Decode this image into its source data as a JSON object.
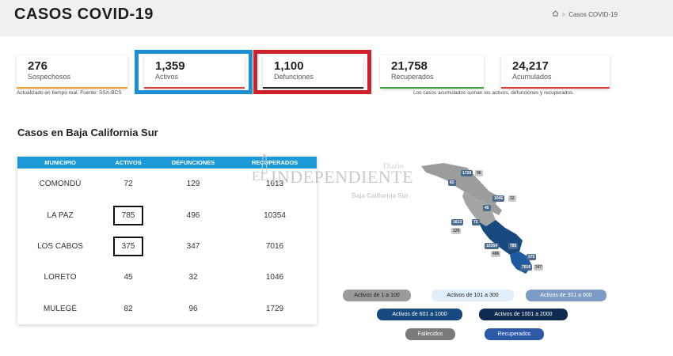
{
  "header": {
    "title": "CASOS COVID-19",
    "breadcrumb": {
      "home_icon": "home-icon",
      "separator": ">",
      "current": "Casos COVID-19"
    }
  },
  "cards": [
    {
      "value": "276",
      "label": "Sospechosos",
      "color": "#f0a030"
    },
    {
      "value": "1,359",
      "label": "Activos",
      "color": "#e03a3a"
    },
    {
      "value": "1,100",
      "label": "Defunciones",
      "color": "#222222"
    },
    {
      "value": "21,758",
      "label": "Recuperados",
      "color": "#3aa63a"
    },
    {
      "value": "24,217",
      "label": "Acumulados",
      "color": "#e03a3a"
    }
  ],
  "highlight_colors": {
    "activos": "#1b8fd6",
    "defunciones": "#d0202a"
  },
  "notes": {
    "left": "Actualizado en tiempo real. Fuente: SSA-BCS",
    "right": "Los casos acumulados suman los activos, defunciones y recuperados."
  },
  "section_title": "Casos en Baja California Sur",
  "table": {
    "headers": [
      "MUNICIPIO",
      "ACTIVOS",
      "DEFUNCIONES",
      "RECUPERADOS"
    ],
    "rows": [
      {
        "municipio": "COMONDÚ",
        "activos": "72",
        "defunciones": "129",
        "recuperados": "1613"
      },
      {
        "municipio": "LA PAZ",
        "activos": "785",
        "defunciones": "496",
        "recuperados": "10354"
      },
      {
        "municipio": "LOS CABOS",
        "activos": "375",
        "defunciones": "347",
        "recuperados": "7016"
      },
      {
        "municipio": "LORETO",
        "activos": "45",
        "defunciones": "32",
        "recuperados": "1046"
      },
      {
        "municipio": "MULEGÉ",
        "activos": "82",
        "defunciones": "96",
        "recuperados": "1729"
      }
    ],
    "header_color": "#1b9ad7"
  },
  "watermark": {
    "el": "EL",
    "name": "INDEPENDIENTE",
    "diario": "Diario",
    "region": "Baja California Sur"
  },
  "map_labels": [
    "1729",
    "96",
    "82",
    "1046",
    "32",
    "45",
    "1613",
    "72",
    "129",
    "10354",
    "785",
    "496",
    "375",
    "7016",
    "347"
  ],
  "legend": [
    {
      "label": "Activos de 1 a 100",
      "bg": "#9a9a9a",
      "fg": "#222222"
    },
    {
      "label": "Activos de 101 a 300",
      "bg": "#e2eef8",
      "fg": "#222222"
    },
    {
      "label": "Activos de 301 a 600",
      "bg": "#7d9cc5",
      "fg": "#ffffff"
    },
    {
      "label": "Activos de 601 a 1000",
      "bg": "#184a80",
      "fg": "#ffffff"
    },
    {
      "label": "Activos de 1001 a 2000",
      "bg": "#0f2b52",
      "fg": "#ffffff"
    },
    {
      "label": "Fallecidos",
      "bg": "#7a7a7a",
      "fg": "#ffffff"
    },
    {
      "label": "Recuperados",
      "bg": "#2c5aa8",
      "fg": "#ffffff"
    }
  ]
}
